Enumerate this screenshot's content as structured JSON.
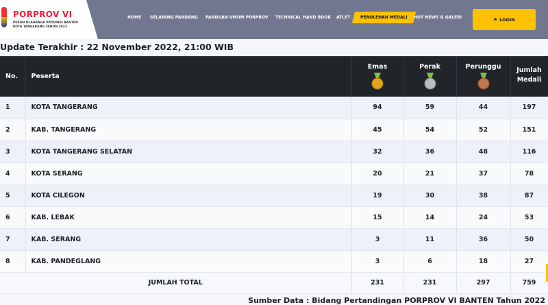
{
  "brand": {
    "title": "PORPROV VI",
    "sub1": "PEKAN OLAHRAGA PROVINSI BANTEN",
    "sub2": "KOTA TANGERANG TAHUN 2022"
  },
  "nav": {
    "items": [
      "HOME",
      "SELAYANG PANDANG",
      "PANDUAN UMUM PORPROV",
      "TECHNICAL HAND BOOK",
      "ATLET",
      "PEROLEHAN MEDALI",
      "HOT NEWS & GALERI"
    ],
    "active": "PEROLEHAN MEDALI",
    "login": "LOGIN",
    "accent": "#fcc200"
  },
  "update": "Update Terakhir : 22 November 2022, 21:00 WIB",
  "table": {
    "headers": {
      "no": "No.",
      "peserta": "Peserta",
      "emas": "Emas",
      "perak": "Perak",
      "perunggu": "Perunggu",
      "jumlah1": "Jumlah",
      "jumlah2": "Medali"
    },
    "rows": [
      [
        "1",
        "KOTA TANGERANG",
        "94",
        "59",
        "44",
        "197"
      ],
      [
        "2",
        "KAB. TANGERANG",
        "45",
        "54",
        "52",
        "151"
      ],
      [
        "3",
        "KOTA TANGERANG SELATAN",
        "32",
        "36",
        "48",
        "116"
      ],
      [
        "4",
        "KOTA SERANG",
        "20",
        "21",
        "37",
        "78"
      ],
      [
        "5",
        "KOTA CILEGON",
        "19",
        "30",
        "38",
        "87"
      ],
      [
        "6",
        "KAB. LEBAK",
        "15",
        "14",
        "24",
        "53"
      ],
      [
        "7",
        "KAB. SERANG",
        "3",
        "11",
        "36",
        "50"
      ],
      [
        "8",
        "KAB. PANDEGLANG",
        "3",
        "6",
        "18",
        "27"
      ]
    ],
    "total": {
      "label": "JUMLAH TOTAL",
      "emas": "231",
      "perak": "231",
      "perunggu": "297",
      "jumlah": "759"
    }
  },
  "source": "Sumber Data : Bidang Pertandingan PORPROV VI BANTEN Tahun 2022"
}
